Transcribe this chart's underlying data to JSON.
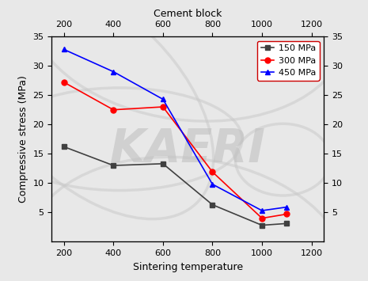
{
  "series": [
    {
      "label": "150 MPa",
      "color": "#404040",
      "marker": "s",
      "x": [
        200,
        400,
        600,
        800,
        1000,
        1100
      ],
      "y": [
        16.2,
        13.0,
        13.3,
        6.3,
        2.8,
        3.1
      ]
    },
    {
      "label": "300 MPa",
      "color": "red",
      "marker": "o",
      "x": [
        200,
        400,
        600,
        800,
        1000,
        1100
      ],
      "y": [
        27.2,
        22.5,
        23.0,
        11.9,
        4.0,
        4.7
      ]
    },
    {
      "label": "450 MPa",
      "color": "blue",
      "marker": "^",
      "x": [
        200,
        400,
        600,
        800,
        1000,
        1100
      ],
      "y": [
        32.8,
        29.0,
        24.3,
        9.8,
        5.3,
        5.9
      ]
    }
  ],
  "xlabel_bottom": "Sintering temperature",
  "xlabel_top": "Cement block",
  "ylabel_left": "Compressive stress (MPa)",
  "xlim": [
    150,
    1250
  ],
  "ylim": [
    0,
    35
  ],
  "xticks": [
    200,
    400,
    600,
    800,
    1000,
    1200
  ],
  "yticks_left": [
    5,
    10,
    15,
    20,
    25,
    30,
    35
  ],
  "yticks_right": [
    5,
    10,
    15,
    20,
    25,
    30,
    35
  ],
  "background_color": "#e8e8e8",
  "plot_bg_color": "#e8e8e8",
  "watermark_text": "KAERI",
  "watermark_color": "#c0c0c0",
  "watermark_fontsize": 42,
  "watermark_alpha": 0.6,
  "legend_box_edgecolor": "#cc0000",
  "figsize": [
    4.65,
    3.55
  ],
  "dpi": 100
}
